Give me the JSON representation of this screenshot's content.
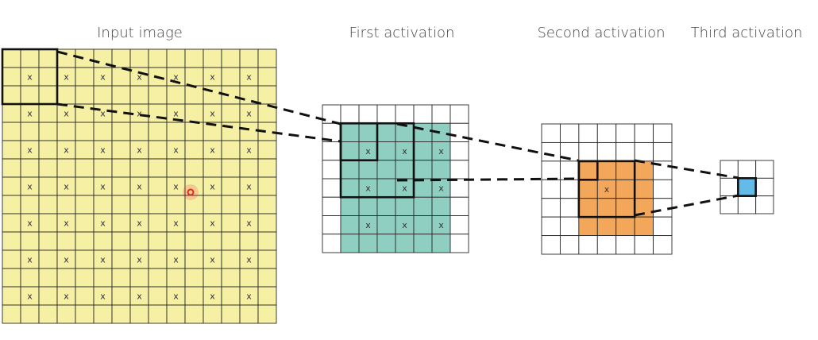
{
  "titles": {
    "input": "Input image",
    "first": "First activation",
    "second": "Second activation",
    "third": "Third activation"
  },
  "cell_mark": "x",
  "grids": {
    "input": {
      "rows": 15,
      "cols": 15,
      "fill": "#f6f0a4",
      "marks_every": 2,
      "marks_start": 1
    },
    "first": {
      "rows": 8,
      "cols": 8,
      "fill": "#8fcfc1",
      "fill_from": 1,
      "fill_to": 7,
      "marks_every": 2,
      "marks_start": 2,
      "marks_end": 6
    },
    "second": {
      "rows": 7,
      "cols": 7,
      "fill": "#f3a75b",
      "fill_from": 2,
      "fill_to": 5,
      "mark_cell": 3
    },
    "third": {
      "rows": 3,
      "cols": 3,
      "fill": "#63bce8",
      "fill_cell": 1
    }
  },
  "colors": {
    "grid_line": "#2a2a2a",
    "highlight": "#111111",
    "connector": "#111111",
    "focus_point": "#e8262a"
  }
}
